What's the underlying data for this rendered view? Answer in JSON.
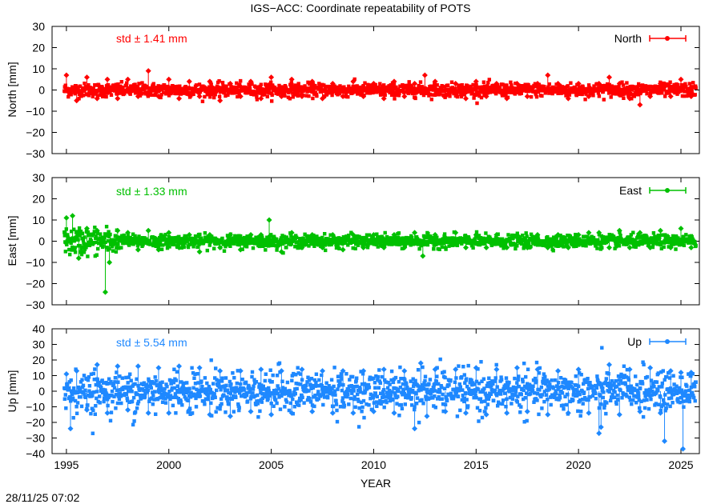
{
  "title": "IGS−ACC: Coordinate repeatability of POTS",
  "timestamp": "28/11/25 07:02",
  "chart_data": [
    {
      "type": "scatter",
      "title": "IGS−ACC: Coordinate repeatability of POTS",
      "xlabel": "",
      "ylabel": "North [mm]",
      "ylim": [
        -30,
        30
      ],
      "yticks": [
        30,
        20,
        10,
        0,
        -10,
        -20,
        -30
      ],
      "xlim": [
        1994.3,
        2025.9
      ],
      "xticks": [
        1995,
        2000,
        2005,
        2010,
        2015,
        2020,
        2025
      ],
      "annotation": "std ± 1.41 mm",
      "legend": "North",
      "legend_position": "top-right",
      "color": "#ff0000",
      "series": [
        {
          "name": "North",
          "base_std": 1.41,
          "x": [
            1995.0,
            1995.5,
            1996.0,
            1996.5,
            1997.0,
            1997.5,
            1998.0,
            1998.5,
            1999.0,
            1999.5,
            2000.0,
            2000.5,
            2001.0,
            2001.5,
            2002.0,
            2002.5,
            2003.0,
            2003.5,
            2004.0,
            2004.5,
            2005.0,
            2005.5,
            2006.0,
            2006.5,
            2007.0,
            2007.5,
            2008.0,
            2008.5,
            2009.0,
            2009.5,
            2010.0,
            2010.5,
            2011.0,
            2011.5,
            2012.0,
            2012.5,
            2013.0,
            2013.5,
            2014.0,
            2014.5,
            2015.0,
            2015.5,
            2016.0,
            2016.5,
            2017.0,
            2017.5,
            2018.0,
            2018.5,
            2019.0,
            2019.5,
            2020.0,
            2020.5,
            2021.0,
            2021.5,
            2022.0,
            2022.5,
            2023.0,
            2023.5,
            2024.0,
            2024.5,
            2025.0,
            2025.5
          ],
          "y": [
            7,
            -5,
            6,
            -4,
            5,
            -4,
            5,
            -3,
            9,
            -3,
            5,
            -4,
            4,
            -3,
            4,
            -5,
            3,
            -3,
            4,
            -4,
            6,
            -3,
            5,
            -3,
            4,
            -4,
            3,
            -3,
            4,
            -3,
            3,
            -4,
            4,
            -3,
            3,
            7,
            4,
            -3,
            3,
            -4,
            4,
            -3,
            3,
            -4,
            3,
            -3,
            3,
            7,
            3,
            -4,
            3,
            -3,
            3,
            6,
            3,
            -4,
            -7,
            -3,
            3,
            -3,
            5,
            -3
          ]
        }
      ]
    },
    {
      "type": "scatter",
      "xlabel": "",
      "ylabel": "East [mm]",
      "ylim": [
        -30,
        30
      ],
      "yticks": [
        30,
        20,
        10,
        0,
        -10,
        -20,
        -30
      ],
      "xlim": [
        1994.3,
        2025.9
      ],
      "xticks": [
        1995,
        2000,
        2005,
        2010,
        2015,
        2020,
        2025
      ],
      "annotation": "std ± 1.33 mm",
      "legend": "East",
      "legend_position": "top-right",
      "color": "#00c000",
      "series": [
        {
          "name": "East",
          "base_std": 1.33,
          "x": [
            1995.0,
            1995.3,
            1995.6,
            1996.0,
            1996.5,
            1996.9,
            1997.1,
            1997.5,
            1998.0,
            1998.5,
            1999.0,
            1999.5,
            2000.0,
            2000.5,
            2001.0,
            2001.5,
            2002.0,
            2002.5,
            2003.0,
            2003.5,
            2004.0,
            2004.5,
            2004.9,
            2005.5,
            2006.0,
            2006.5,
            2007.0,
            2007.5,
            2008.0,
            2008.5,
            2009.0,
            2009.5,
            2010.0,
            2010.5,
            2011.0,
            2011.5,
            2012.0,
            2012.4,
            2013.0,
            2013.5,
            2014.0,
            2014.5,
            2015.0,
            2015.5,
            2016.0,
            2016.5,
            2017.0,
            2017.5,
            2018.0,
            2018.5,
            2019.0,
            2019.5,
            2020.0,
            2020.5,
            2021.0,
            2021.5,
            2022.0,
            2022.5,
            2023.0,
            2023.5,
            2024.0,
            2024.5,
            2025.0,
            2025.5
          ],
          "y": [
            11,
            12,
            -8,
            6,
            5,
            -24,
            -10,
            5,
            4,
            -4,
            5,
            -4,
            4,
            -3,
            3,
            -5,
            3,
            -3,
            3,
            -4,
            3,
            3,
            10,
            -5,
            4,
            -3,
            3,
            -3,
            3,
            -4,
            3,
            -3,
            3,
            -3,
            3,
            -3,
            4,
            -7,
            3,
            -3,
            4,
            -3,
            3,
            -3,
            3,
            -3,
            3,
            -3,
            3,
            -3,
            3,
            -3,
            3,
            4,
            4,
            -3,
            5,
            -3,
            4,
            -3,
            5,
            -3,
            6,
            -3
          ]
        }
      ]
    },
    {
      "type": "scatter",
      "xlabel": "YEAR",
      "ylabel": "Up [mm]",
      "ylim": [
        -40,
        40
      ],
      "yticks": [
        40,
        30,
        20,
        10,
        0,
        -10,
        -20,
        -30,
        -40
      ],
      "xlim": [
        1994.3,
        2025.9
      ],
      "xticks": [
        1995,
        2000,
        2005,
        2010,
        2015,
        2020,
        2025
      ],
      "annotation": "std ± 5.54 mm",
      "legend": "Up",
      "legend_position": "top-right",
      "color": "#1e88ff",
      "series": [
        {
          "name": "Up",
          "base_std": 5.54,
          "x": [
            1995.0,
            1995.2,
            1995.5,
            1996.0,
            1996.5,
            1997.0,
            1997.5,
            1998.0,
            1998.5,
            1999.0,
            1999.5,
            2000.0,
            2000.5,
            2001.0,
            2001.5,
            2002.0,
            2002.5,
            2003.0,
            2003.5,
            2004.0,
            2004.5,
            2005.0,
            2005.5,
            2006.0,
            2006.5,
            2007.0,
            2007.5,
            2008.0,
            2008.5,
            2009.0,
            2009.5,
            2010.0,
            2010.5,
            2011.0,
            2011.5,
            2012.0,
            2012.3,
            2012.6,
            2013.0,
            2013.5,
            2014.0,
            2014.5,
            2015.0,
            2015.5,
            2016.0,
            2016.5,
            2017.0,
            2017.5,
            2018.0,
            2018.5,
            2019.0,
            2019.5,
            2020.0,
            2020.5,
            2021.0,
            2021.1,
            2021.5,
            2022.0,
            2022.5,
            2023.0,
            2023.5,
            2024.0,
            2024.2,
            2024.5,
            2025.0,
            2025.1,
            2025.5
          ],
          "y": [
            11,
            -24,
            13,
            -12,
            17,
            -14,
            16,
            -12,
            16,
            -14,
            15,
            -14,
            16,
            -12,
            15,
            -15,
            13,
            -16,
            13,
            -13,
            14,
            -15,
            13,
            -14,
            14,
            -13,
            13,
            -14,
            13,
            -14,
            13,
            -13,
            14,
            -14,
            13,
            -24,
            18,
            -16,
            14,
            -13,
            14,
            -14,
            15,
            -15,
            14,
            -14,
            15,
            -13,
            14,
            -15,
            13,
            -14,
            14,
            -14,
            -27,
            -23,
            17,
            -15,
            14,
            -13,
            15,
            -14,
            -32,
            13,
            12,
            -37,
            12
          ]
        }
      ]
    }
  ]
}
